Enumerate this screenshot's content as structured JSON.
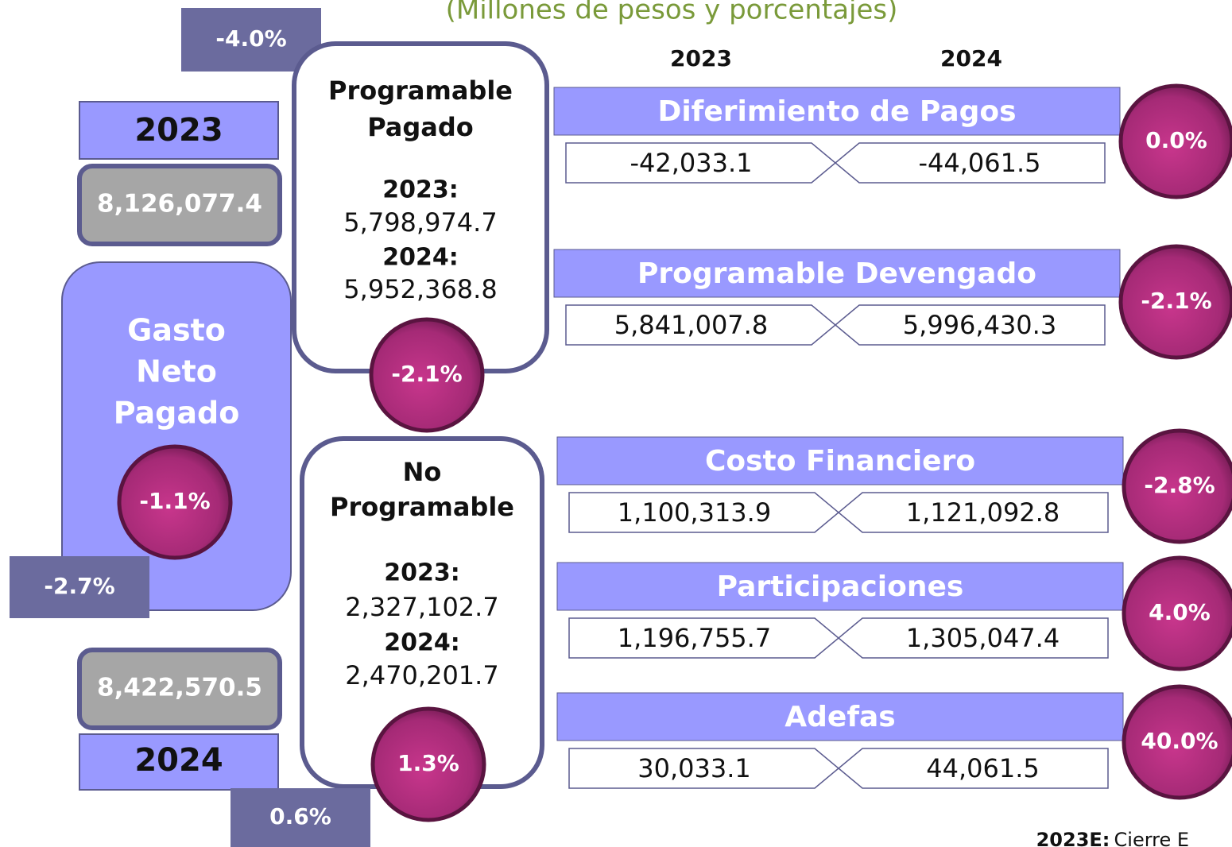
{
  "subtitle": "(Millones de pesos y porcentajes)",
  "total": {
    "title_lines": [
      "Gasto",
      "Neto",
      "Pagado"
    ],
    "change": "-1.1%",
    "year_2023": "2023",
    "value_2023": "8,126,077.4",
    "year_2024": "2024",
    "value_2024": "8,422,570.5",
    "tag_top": "-4.0%",
    "tag_left": "-2.7%",
    "tag_bottom": "0.6%"
  },
  "programable": {
    "title_lines": [
      "Programable",
      "Pagado"
    ],
    "label_2023": "2023:",
    "value_2023": "5,798,974.7",
    "label_2024": "2024:",
    "value_2024": "5,952,368.8",
    "change": "-2.1%"
  },
  "no_programable": {
    "title_lines": [
      "No",
      "Programable"
    ],
    "label_2023": "2023:",
    "value_2023": "2,327,102.7",
    "label_2024": "2024:",
    "value_2024": "2,470,201.7",
    "change": "1.3%"
  },
  "column_headers": [
    "2023",
    "2024"
  ],
  "rows": [
    {
      "label": "Diferimiento de Pagos",
      "value_2023": "-42,033.1",
      "value_2024": "-44,061.5",
      "change": "0.0%"
    },
    {
      "label": "Programable Devengado",
      "value_2023": "5,841,007.8",
      "value_2024": "5,996,430.3",
      "change": "-2.1%"
    },
    {
      "label": "Costo Financiero",
      "value_2023": "1,100,313.9",
      "value_2024": "1,121,092.8",
      "change": "-2.8%"
    },
    {
      "label": "Participaciones",
      "value_2023": "1,196,755.7",
      "value_2024": "1,305,047.4",
      "change": "4.0%"
    },
    {
      "label": "Adefas",
      "value_2023": "30,033.1",
      "value_2024": "44,061.5",
      "change": "40.0%"
    }
  ],
  "footnote": {
    "label": "2023E:",
    "text": "Cierre E"
  }
}
